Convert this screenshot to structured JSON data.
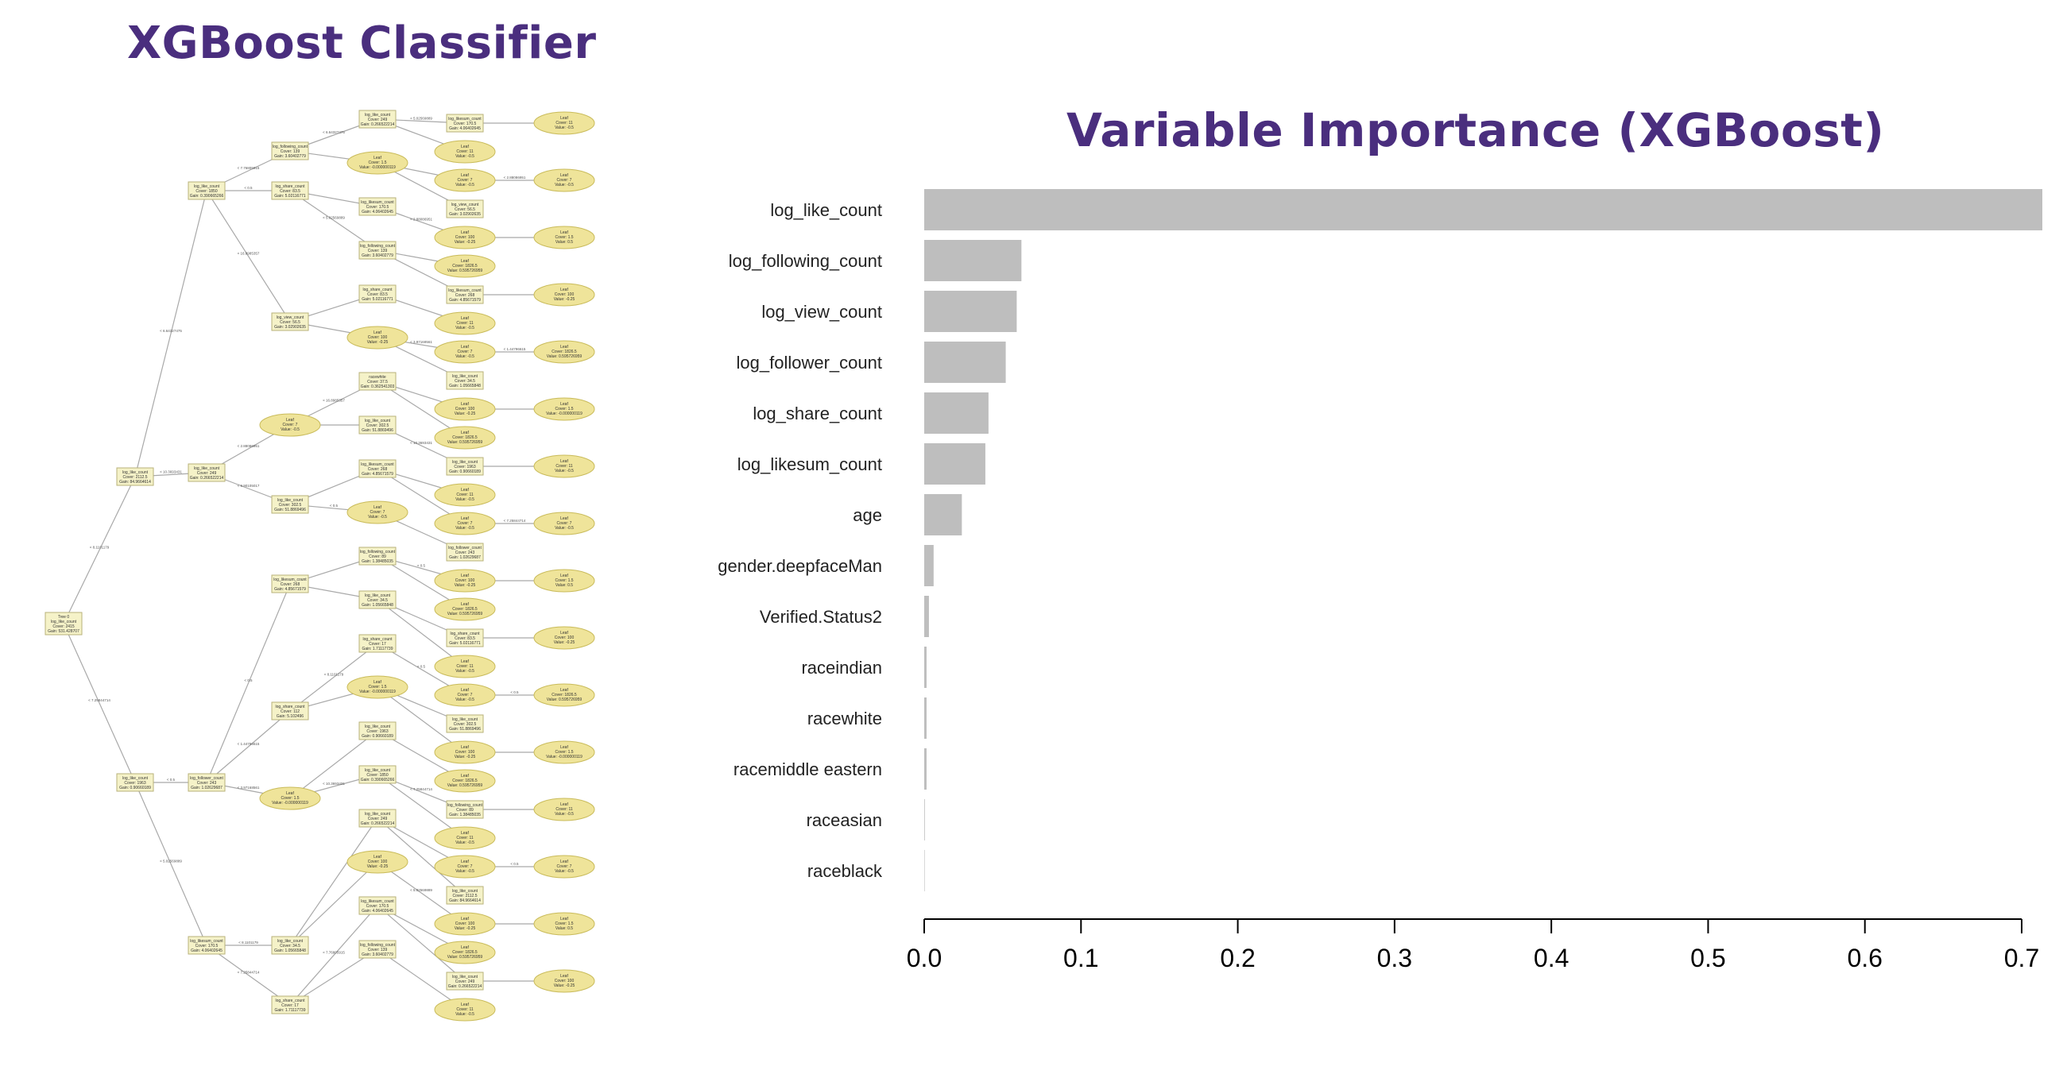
{
  "titles": {
    "tree_title": "XGBoost Classifier",
    "importance_title": "Variable Importance (XGBoost)"
  },
  "tree": {
    "root": [
      "Tree 0",
      "log_like_count",
      "Cover: 2415",
      "Gain: 531.428707"
    ],
    "decision_nodes": [
      [
        "log_like_count",
        "Cover: 2112.5",
        "Gain: 84.9664614"
      ],
      [
        "log_like_count",
        "Cover: 1963",
        "Gain: 0.90660189"
      ],
      [
        "log_like_count",
        "Cover: 1850",
        "Gain: 0.390665266"
      ],
      [
        "log_like_count",
        "Cover: 249",
        "Gain: 0.266522214"
      ],
      [
        "log_follower_count",
        "Cover: 243",
        "Gain: 1.02629687"
      ],
      [
        "log_likesum_count",
        "Cover: 170.5",
        "Gain: 4.06402645"
      ],
      [
        "log_following_count",
        "Cover: 139",
        "Gain: 3.60402779"
      ],
      [
        "log_share_count",
        "Cover: 83.5",
        "Gain: 5.02116771"
      ],
      [
        "log_view_count",
        "Cover: 56.5",
        "Gain: 3.02902635"
      ],
      [
        "racewhite",
        "Cover: 37.5",
        "Gain: 0.362541303"
      ],
      [
        "log_like_count",
        "Cover: 302.5",
        "Gain: 51.8869496"
      ],
      [
        "log_likesum_count",
        "Cover: 268",
        "Gain: 4.85671579"
      ],
      [
        "log_share_count",
        "Cover: 112",
        "Gain: 5.102496"
      ],
      [
        "log_following_count",
        "Cover: 89",
        "Gain: 1.38485035"
      ],
      [
        "log_like_count",
        "Cover: 34.5",
        "Gain: 1.05665848"
      ],
      [
        "log_share_count",
        "Cover: 17",
        "Gain: 1.71117739"
      ]
    ],
    "leaves": [
      [
        "Leaf",
        "Cover: 1826.5",
        "Value: 0.595726959"
      ],
      [
        "Leaf",
        "Cover: 1.5",
        "Value: -0.000000119"
      ],
      [
        "Leaf",
        "Cover: 11",
        "Value: -0.5"
      ],
      [
        "Leaf",
        "Cover: 7",
        "Value: -0.5"
      ],
      [
        "Leaf",
        "Cover: 1.5",
        "Value: 0.5"
      ],
      [
        "Leaf",
        "Cover: 100",
        "Value: -0.25"
      ]
    ],
    "edge_labels": [
      "< 8.1101179",
      "< 7.25844714",
      "< 6.64327475",
      "< 10.3693431",
      "< 0.5",
      "< 5.02569889",
      "< 7.76805915",
      "< 0.5",
      "< 16.8985357",
      "< 2.88086951",
      "< 9.90105017",
      "< 0.5",
      "< 1.44796615",
      "< 3.97168561"
    ]
  },
  "chart_data": {
    "type": "bar",
    "orientation": "horizontal",
    "title": "Variable Importance (XGBoost)",
    "categories": [
      "log_like_count",
      "log_following_count",
      "log_view_count",
      "log_follower_count",
      "log_share_count",
      "log_likesum_count",
      "age",
      "gender.deepfaceMan",
      "Verified.Status2",
      "raceindian",
      "racewhite",
      "racemiddle eastern",
      "raceasian",
      "raceblack"
    ],
    "values": [
      0.714,
      0.062,
      0.059,
      0.052,
      0.041,
      0.039,
      0.024,
      0.006,
      0.003,
      0.0015,
      0.0015,
      0.0015,
      0.0004,
      0.0003
    ],
    "xlim": [
      0,
      0.7
    ],
    "xticks": [
      "0.0",
      "0.1",
      "0.2",
      "0.3",
      "0.4",
      "0.5",
      "0.6",
      "0.7"
    ],
    "bar_color": "#bebebe",
    "grid": false
  }
}
